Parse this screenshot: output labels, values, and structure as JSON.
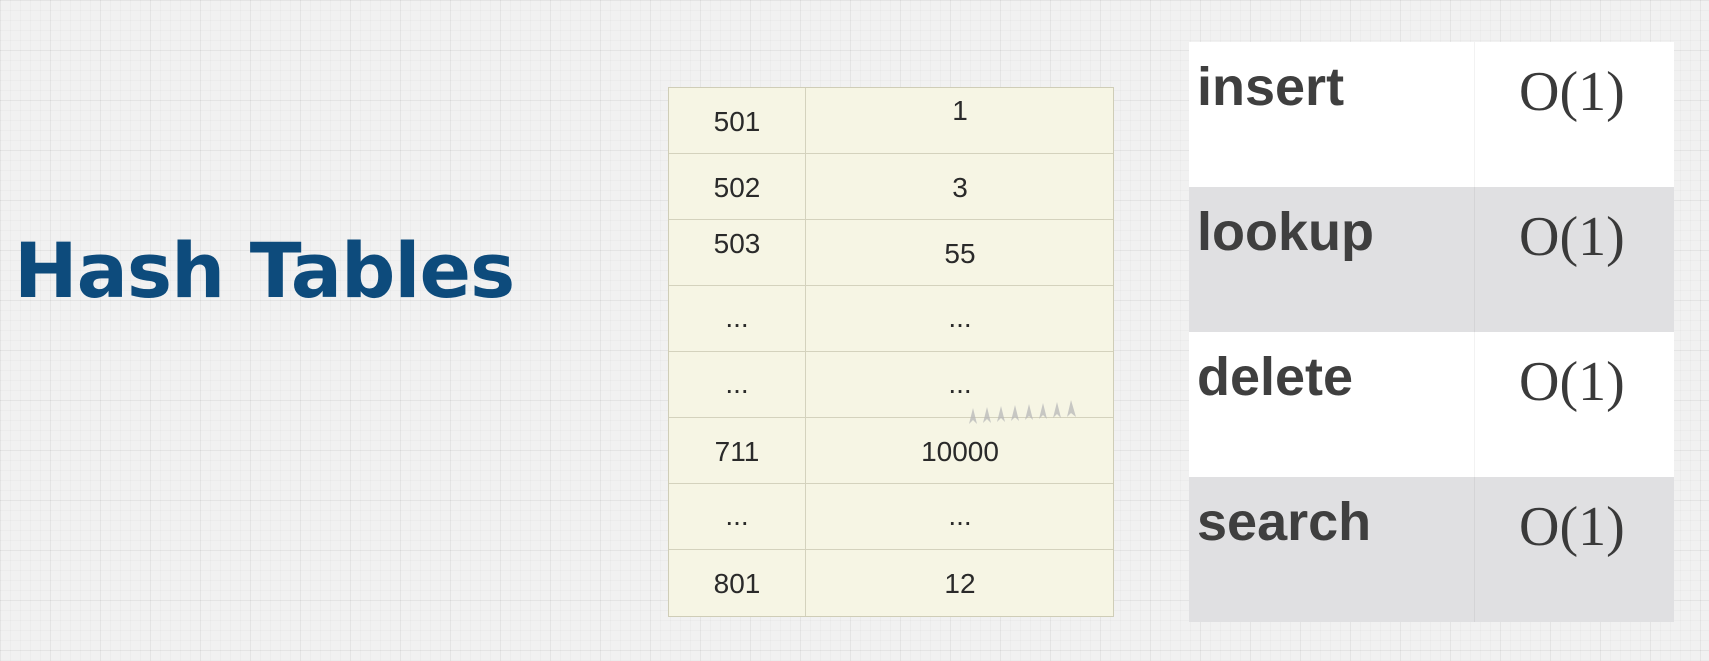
{
  "title": "Hash Tables",
  "hash_table": {
    "rows": [
      {
        "key": "501",
        "value": "1"
      },
      {
        "key": "502",
        "value": "3"
      },
      {
        "key": "503",
        "value": "55"
      },
      {
        "key": "...",
        "value": "..."
      },
      {
        "key": "...",
        "value": "..."
      },
      {
        "key": "711",
        "value": "10000"
      },
      {
        "key": "...",
        "value": "..."
      },
      {
        "key": "801",
        "value": "12"
      }
    ]
  },
  "operations": [
    {
      "name": "insert",
      "complexity": "O(1)"
    },
    {
      "name": "lookup",
      "complexity": "O(1)"
    },
    {
      "name": "delete",
      "complexity": "O(1)"
    },
    {
      "name": "search",
      "complexity": "O(1)"
    }
  ]
}
